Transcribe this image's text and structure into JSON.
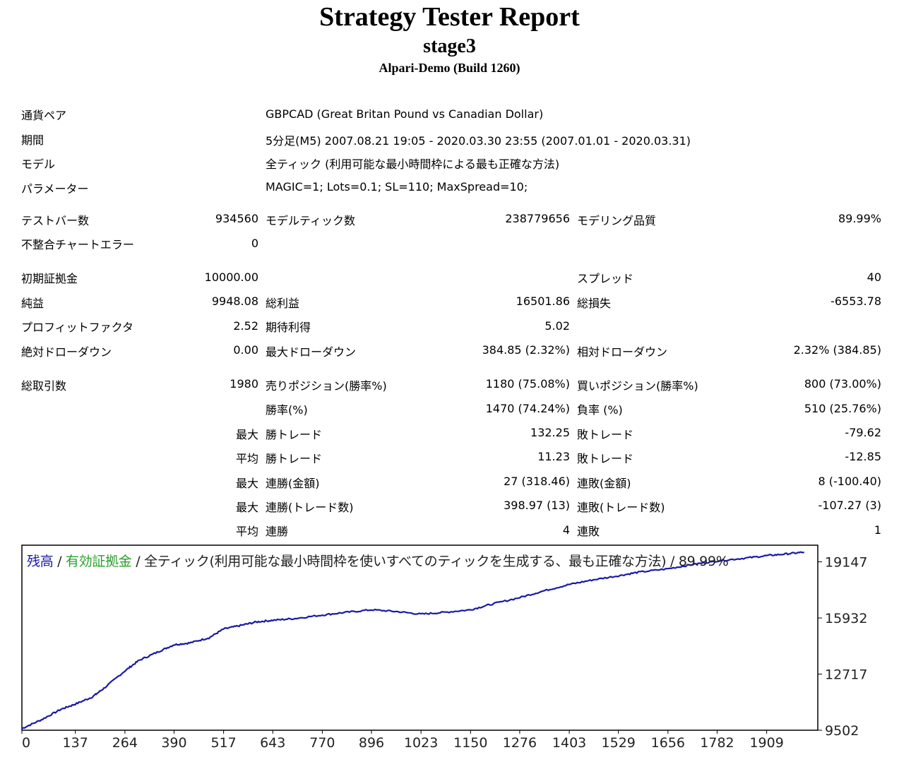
{
  "header": {
    "title": "Strategy Tester Report",
    "subtitle": "stage3",
    "server": "Alpari-Demo (Build 1260)"
  },
  "info": [
    {
      "label": "通貨ペア",
      "value": "GBPCAD (Great Britan Pound vs Canadian Dollar)"
    },
    {
      "label": "期間",
      "value": "5分足(M5) 2007.08.21 19:05 - 2020.03.30 23:55 (2007.01.01 - 2020.03.31)"
    },
    {
      "label": "モデル",
      "value": "全ティック (利用可能な最小時間枠による最も正確な方法)"
    },
    {
      "label": "パラメーター",
      "value": "MAGIC=1; Lots=0.1; SL=110; MaxSpread=10;"
    }
  ],
  "stats": {
    "bars_label": "テストバー数",
    "bars": "934560",
    "ticks_label": "モデルティック数",
    "ticks": "238779656",
    "quality_label": "モデリング品質",
    "quality": "89.99%",
    "mismatch_label": "不整合チャートエラー",
    "mismatch": "0",
    "deposit_label": "初期証拠金",
    "deposit": "10000.00",
    "spread_label": "スプレッド",
    "spread": "40",
    "net_label": "純益",
    "net": "9948.08",
    "gross_profit_label": "総利益",
    "gross_profit": "16501.86",
    "gross_loss_label": "総損失",
    "gross_loss": "-6553.78",
    "pf_label": "プロフィットファクタ",
    "pf": "2.52",
    "payoff_label": "期待利得",
    "payoff": "5.02",
    "abs_dd_label": "絶対ドローダウン",
    "abs_dd": "0.00",
    "max_dd_label": "最大ドローダウン",
    "max_dd": "384.85 (2.32%)",
    "rel_dd_label": "相対ドローダウン",
    "rel_dd": "2.32% (384.85)",
    "trades_label": "総取引数",
    "trades": "1980",
    "short_label": "売りポジション(勝率%)",
    "short": "1180 (75.08%)",
    "long_label": "買いポジション(勝率%)",
    "long": "800 (73.00%)",
    "win_label": "勝率(%)",
    "win": "1470 (74.24%)",
    "loss_label": "負率 (%)",
    "loss": "510 (25.76%)",
    "max1": "最大",
    "largest_win_label": "勝トレード",
    "largest_win": "132.25",
    "largest_loss_label": "敗トレード",
    "largest_loss": "-79.62",
    "avg1": "平均",
    "avg_win_label": "勝トレード",
    "avg_win": "11.23",
    "avg_loss_label": "敗トレード",
    "avg_loss": "-12.85",
    "max2": "最大",
    "cons_win_money_label": "連勝(金額)",
    "cons_win_money": "27 (318.46)",
    "cons_loss_money_label": "連敗(金額)",
    "cons_loss_money": "8 (-100.40)",
    "max3": "最大",
    "cons_win_count_label": "連勝(トレード数)",
    "cons_win_count": "398.97 (13)",
    "cons_loss_count_label": "連敗(トレード数)",
    "cons_loss_count": "-107.27 (3)",
    "avg2": "平均",
    "avg_cons_win_label": "連勝",
    "avg_cons_win": "4",
    "avg_cons_loss_label": "連敗",
    "avg_cons_loss": "1"
  },
  "chart_legend": {
    "balance": "残高",
    "sep1": " / ",
    "equity": "有効証拠金",
    "rest": " / 全ティック(利用可能な最小時間枠を使いすべてのティックを生成する、最も正確な方法) / 89.99%"
  },
  "colors": {
    "balance_line": "#1a1aa6",
    "equity_legend": "#2aa02a"
  },
  "chart_data": {
    "type": "line",
    "x_ticks": [
      0,
      137,
      264,
      390,
      517,
      643,
      770,
      896,
      1023,
      1150,
      1276,
      1403,
      1529,
      1656,
      1782,
      1909
    ],
    "y_ticks": [
      9502,
      12717,
      15932,
      19147
    ],
    "xlim": [
      0,
      2040
    ],
    "ylim": [
      9502,
      20100
    ],
    "series": [
      {
        "x": [
          0,
          50,
          100,
          137,
          180,
          210,
          264,
          300,
          350,
          390,
          430,
          480,
          517,
          560,
          600,
          643,
          700,
          770,
          830,
          896,
          960,
          1023,
          1080,
          1150,
          1200,
          1276,
          1340,
          1403,
          1460,
          1529,
          1580,
          1656,
          1720,
          1782,
          1850,
          1909,
          1960,
          2005
        ],
        "y": [
          9600,
          10100,
          10700,
          11000,
          11400,
          11900,
          12900,
          13500,
          14000,
          14400,
          14500,
          14800,
          15300,
          15500,
          15700,
          15800,
          15900,
          16100,
          16250,
          16400,
          16300,
          16150,
          16250,
          16400,
          16700,
          17100,
          17500,
          17850,
          18100,
          18350,
          18550,
          18750,
          19000,
          19200,
          19350,
          19500,
          19600,
          19700
        ]
      }
    ]
  }
}
